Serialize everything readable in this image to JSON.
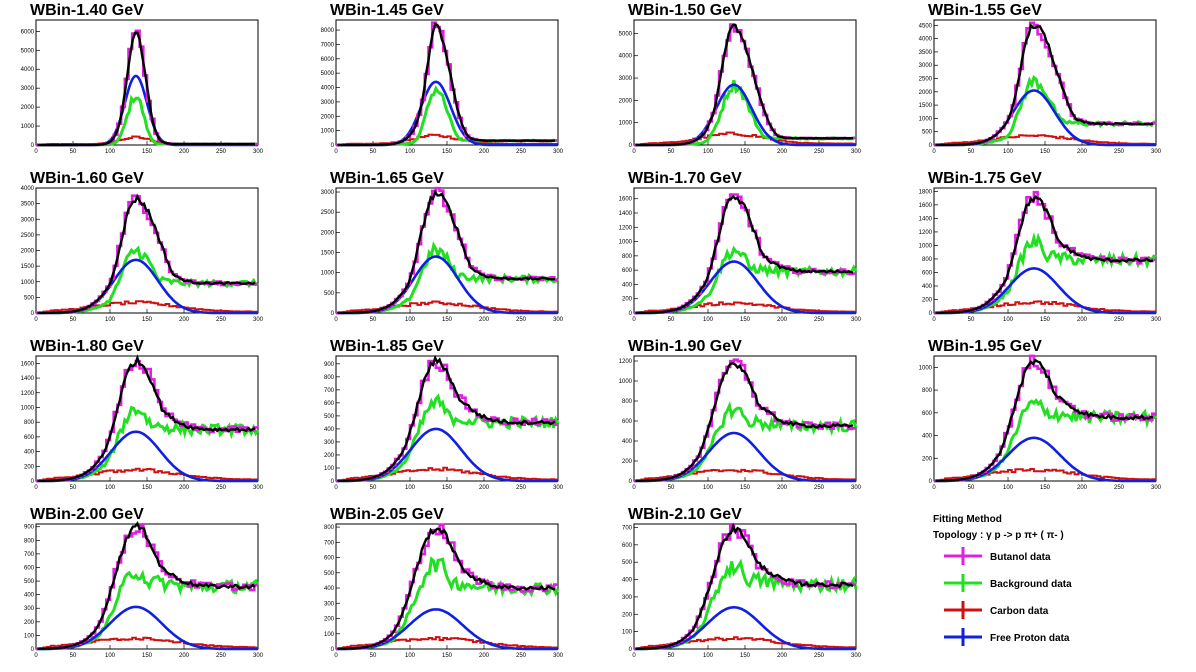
{
  "chart_data": {
    "type": "line",
    "xlim": [
      0,
      300
    ],
    "x_ticks": [
      "0",
      "50",
      "100",
      "150",
      "200",
      "250",
      "300"
    ],
    "series_names": [
      "Butanol data",
      "Background data",
      "Carbon data",
      "Free Proton data"
    ],
    "colors": {
      "butanol": "#e020e0",
      "background": "#20e020",
      "carbon": "#d01010",
      "proton": "#1020e0",
      "fit": "#000000"
    },
    "panels": [
      {
        "title": "WBin-1.40 GeV",
        "ymax": 6600,
        "yticks": [
          0,
          1000,
          2000,
          3000,
          4000,
          5000,
          6000
        ],
        "peak": 6000,
        "sigma_l": 12,
        "sigma_r": 13,
        "bg_peak": 2600,
        "bg_tail": 50,
        "carbon_peak": 400,
        "proton_peak": 3650,
        "proton_sigma": 15
      },
      {
        "title": "WBin-1.45 GeV",
        "ymax": 8700,
        "yticks": [
          0,
          1000,
          2000,
          3000,
          4000,
          5000,
          6000,
          7000,
          8000
        ],
        "peak": 8200,
        "sigma_l": 13,
        "sigma_r": 19,
        "bg_peak": 3900,
        "bg_tail": 300,
        "carbon_peak": 650,
        "proton_peak": 4400,
        "proton_sigma": 20
      },
      {
        "title": "WBin-1.50 GeV",
        "ymax": 5600,
        "yticks": [
          0,
          1000,
          2000,
          3000,
          4000,
          5000
        ],
        "peak": 5300,
        "sigma_l": 17,
        "sigma_r": 26,
        "bg_peak": 2700,
        "bg_tail": 300,
        "carbon_peak": 500,
        "proton_peak": 2700,
        "proton_sigma": 24
      },
      {
        "title": "WBin-1.55 GeV",
        "ymax": 4700,
        "yticks": [
          0,
          500,
          1000,
          1500,
          2000,
          2500,
          3000,
          3500,
          4000,
          4500
        ],
        "peak": 4500,
        "sigma_l": 19,
        "sigma_r": 32,
        "bg_peak": 2400,
        "bg_tail": 800,
        "carbon_peak": 350,
        "proton_peak": 2050,
        "proton_sigma": 28
      },
      {
        "title": "WBin-1.60 GeV",
        "ymax": 4000,
        "yticks": [
          0,
          500,
          1000,
          1500,
          2000,
          2500,
          3000,
          3500,
          4000
        ],
        "peak": 3650,
        "sigma_l": 21,
        "sigma_r": 34,
        "bg_peak": 2000,
        "bg_tail": 950,
        "carbon_peak": 330,
        "proton_peak": 1700,
        "proton_sigma": 30
      },
      {
        "title": "WBin-1.65 GeV",
        "ymax": 3100,
        "yticks": [
          0,
          500,
          1000,
          1500,
          2000,
          2500,
          3000
        ],
        "peak": 2950,
        "sigma_l": 22,
        "sigma_r": 34,
        "bg_peak": 1550,
        "bg_tail": 850,
        "carbon_peak": 250,
        "proton_peak": 1400,
        "proton_sigma": 30
      },
      {
        "title": "WBin-1.70 GeV",
        "ymax": 1750,
        "yticks": [
          0,
          200,
          400,
          600,
          800,
          1000,
          1200,
          1400,
          1600
        ],
        "peak": 1620,
        "sigma_l": 23,
        "sigma_r": 33,
        "bg_peak": 880,
        "bg_tail": 580,
        "carbon_peak": 140,
        "proton_peak": 720,
        "proton_sigma": 32
      },
      {
        "title": "WBin-1.75 GeV",
        "ymax": 1850,
        "yticks": [
          0,
          200,
          400,
          600,
          800,
          1000,
          1200,
          1400,
          1600,
          1800
        ],
        "peak": 1700,
        "sigma_l": 24,
        "sigma_r": 34,
        "bg_peak": 1050,
        "bg_tail": 780,
        "carbon_peak": 160,
        "proton_peak": 660,
        "proton_sigma": 33
      },
      {
        "title": "WBin-1.80 GeV",
        "ymax": 1700,
        "yticks": [
          0,
          200,
          400,
          600,
          800,
          1000,
          1200,
          1400,
          1600
        ],
        "peak": 1630,
        "sigma_l": 25,
        "sigma_r": 35,
        "bg_peak": 980,
        "bg_tail": 700,
        "carbon_peak": 150,
        "proton_peak": 670,
        "proton_sigma": 33
      },
      {
        "title": "WBin-1.85 GeV",
        "ymax": 960,
        "yticks": [
          0,
          100,
          200,
          300,
          400,
          500,
          600,
          700,
          800,
          900
        ],
        "peak": 920,
        "sigma_l": 26,
        "sigma_r": 35,
        "bg_peak": 600,
        "bg_tail": 450,
        "carbon_peak": 90,
        "proton_peak": 400,
        "proton_sigma": 34
      },
      {
        "title": "WBin-1.90 GeV",
        "ymax": 1250,
        "yticks": [
          0,
          200,
          400,
          600,
          800,
          1000,
          1200
        ],
        "peak": 1180,
        "sigma_l": 27,
        "sigma_r": 36,
        "bg_peak": 720,
        "bg_tail": 550,
        "carbon_peak": 110,
        "proton_peak": 480,
        "proton_sigma": 34
      },
      {
        "title": "WBin-1.95 GeV",
        "ymax": 1100,
        "yticks": [
          0,
          200,
          400,
          600,
          800,
          1000
        ],
        "peak": 1050,
        "sigma_l": 27,
        "sigma_r": 36,
        "bg_peak": 680,
        "bg_tail": 560,
        "carbon_peak": 100,
        "proton_peak": 380,
        "proton_sigma": 35
      },
      {
        "title": "WBin-2.00 GeV",
        "ymax": 920,
        "yticks": [
          0,
          100,
          200,
          300,
          400,
          500,
          600,
          700,
          800,
          900
        ],
        "peak": 900,
        "sigma_l": 28,
        "sigma_r": 37,
        "bg_peak": 570,
        "bg_tail": 460,
        "carbon_peak": 80,
        "proton_peak": 310,
        "proton_sigma": 35
      },
      {
        "title": "WBin-2.05 GeV",
        "ymax": 820,
        "yticks": [
          0,
          100,
          200,
          300,
          400,
          500,
          600,
          700,
          800
        ],
        "peak": 790,
        "sigma_l": 29,
        "sigma_r": 38,
        "bg_peak": 560,
        "bg_tail": 400,
        "carbon_peak": 70,
        "proton_peak": 260,
        "proton_sigma": 36
      },
      {
        "title": "WBin-2.10 GeV",
        "ymax": 720,
        "yticks": [
          0,
          100,
          200,
          300,
          400,
          500,
          600,
          700
        ],
        "peak": 690,
        "sigma_l": 29,
        "sigma_r": 38,
        "bg_peak": 480,
        "bg_tail": 370,
        "carbon_peak": 60,
        "proton_peak": 240,
        "proton_sigma": 36
      }
    ]
  },
  "legend": {
    "heading": "Fitting Method",
    "topology": "Topology :  γ p -> p  π+ ( π- )",
    "items": [
      {
        "label": "Butanol data",
        "color_key": "butanol"
      },
      {
        "label": "Background data",
        "color_key": "background"
      },
      {
        "label": "Carbon data",
        "color_key": "carbon"
      },
      {
        "label": "Free Proton data",
        "color_key": "proton"
      }
    ]
  }
}
